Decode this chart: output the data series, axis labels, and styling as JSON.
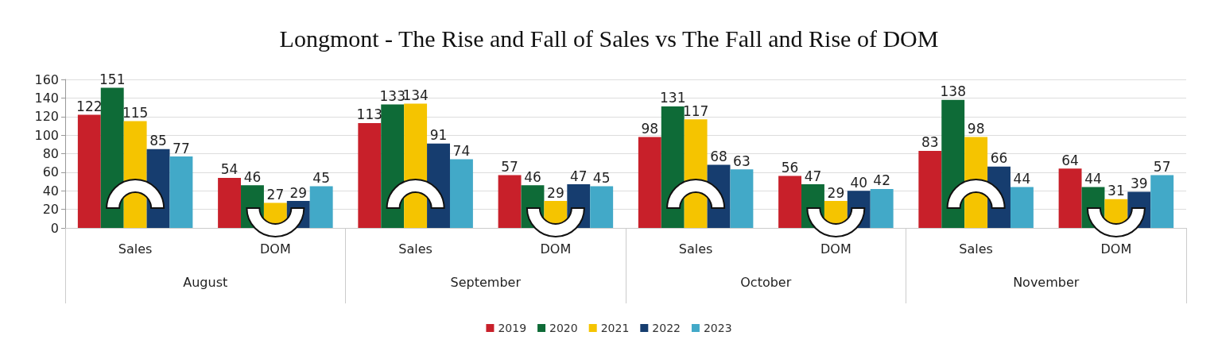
{
  "chart_data": {
    "type": "bar",
    "title": "Longmont - The Rise and Fall of Sales vs The Fall and Rise of DOM",
    "categories": [
      "Sales",
      "DOM",
      "Sales",
      "DOM",
      "Sales",
      "DOM",
      "Sales",
      "DOM"
    ],
    "annotations": [
      "August",
      "September",
      "October",
      "November"
    ],
    "series": [
      {
        "name": "2019",
        "color": "#c8202a",
        "values": [
          122,
          54,
          113,
          57,
          98,
          56,
          83,
          64
        ]
      },
      {
        "name": "2020",
        "color": "#0e6b37",
        "values": [
          151,
          46,
          133,
          46,
          131,
          47,
          138,
          44
        ]
      },
      {
        "name": "2021",
        "color": "#f5c400",
        "values": [
          115,
          27,
          134,
          29,
          117,
          29,
          98,
          31
        ]
      },
      {
        "name": "2022",
        "color": "#163d6f",
        "values": [
          85,
          29,
          91,
          47,
          68,
          40,
          66,
          39
        ]
      },
      {
        "name": "2023",
        "color": "#42a9c8",
        "values": [
          77,
          45,
          74,
          45,
          63,
          42,
          44,
          57
        ]
      }
    ],
    "ylim": [
      0,
      160
    ],
    "yticks": [
      0,
      20,
      40,
      60,
      80,
      100,
      120,
      140,
      160
    ],
    "grid": "y",
    "legend": "bottom",
    "data_labels": true
  }
}
